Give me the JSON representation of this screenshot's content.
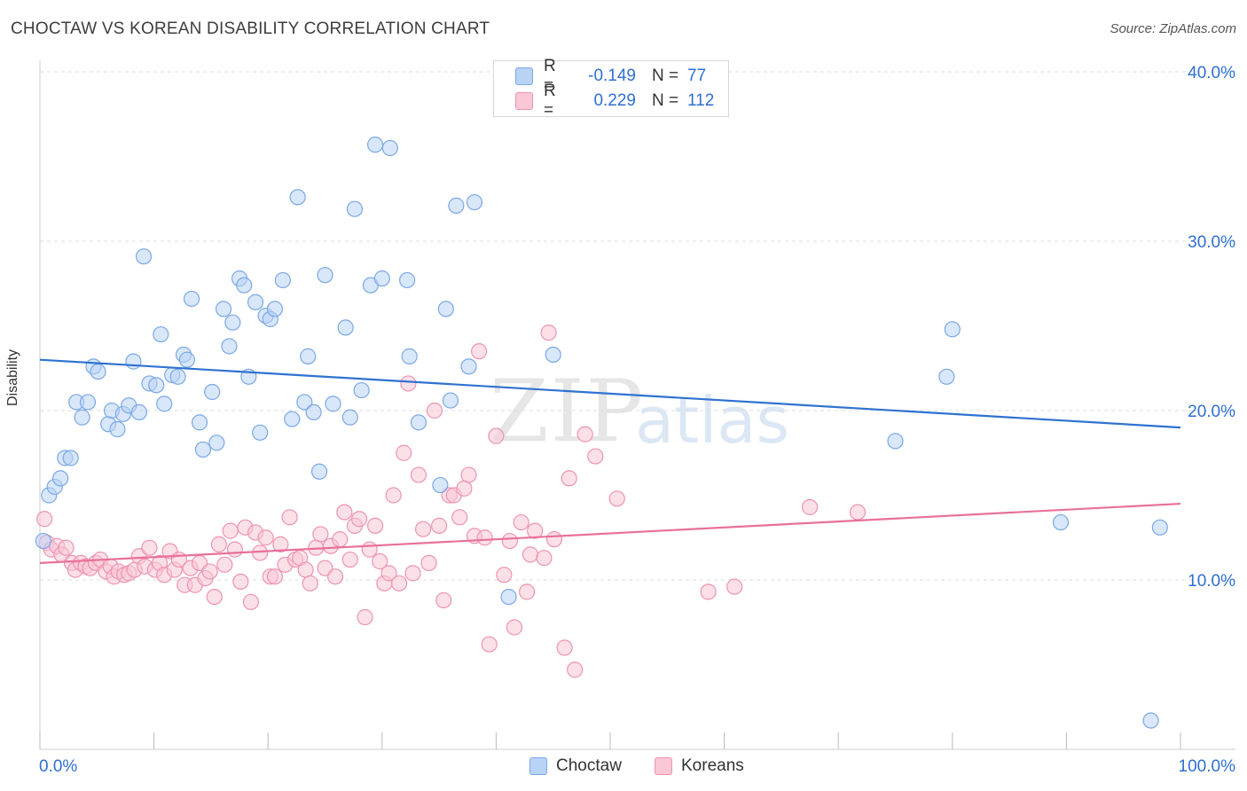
{
  "header": {
    "title": "CHOCTAW VS KOREAN DISABILITY CORRELATION CHART",
    "source": "Source: ZipAtlas.com"
  },
  "watermark": {
    "zip": "ZIP",
    "atlas": "atlas"
  },
  "legend_top": {
    "rows": [
      {
        "r_label": "R =",
        "r_value": "-0.149",
        "n_label": "N =",
        "n_value": "77"
      },
      {
        "r_label": "R =",
        "r_value": "0.229",
        "n_label": "N =",
        "n_value": "112"
      }
    ]
  },
  "legend_bottom": {
    "items": [
      {
        "label": "Choctaw"
      },
      {
        "label": "Koreans"
      }
    ]
  },
  "colors": {
    "choctaw_fill": "#b9d3f5",
    "choctaw_stroke": "#7aa8e6",
    "choctaw_line": "#2f72d0",
    "koreans_fill": "#f9c7d6",
    "koreans_stroke": "#ee93b2",
    "koreans_line": "#e8709a",
    "tick_label": "#2f6fd1",
    "grid": "#dddddd"
  },
  "chart_data": {
    "type": "scatter",
    "title": "CHOCTAW VS KOREAN DISABILITY CORRELATION CHART",
    "xlabel": "",
    "ylabel": "Disability",
    "xlim": [
      0,
      100
    ],
    "ylim": [
      0,
      40
    ],
    "x_tick_labels": [
      "0.0%",
      "100.0%"
    ],
    "y_ticks": [
      10,
      20,
      30,
      40
    ],
    "y_tick_labels": [
      "10.0%",
      "20.0%",
      "30.0%",
      "40.0%"
    ],
    "grid": true,
    "legend_placement": "top-center",
    "series": [
      {
        "name": "Choctaw",
        "r": -0.149,
        "n": 77,
        "trend": {
          "x": [
            0,
            100
          ],
          "y": [
            23.0,
            19.0
          ]
        },
        "points": [
          [
            0.8,
            15.0
          ],
          [
            1.3,
            15.5
          ],
          [
            1.8,
            16.0
          ],
          [
            2.2,
            17.2
          ],
          [
            2.7,
            17.2
          ],
          [
            3.2,
            20.5
          ],
          [
            3.7,
            19.6
          ],
          [
            4.2,
            20.5
          ],
          [
            4.7,
            22.6
          ],
          [
            5.1,
            22.3
          ],
          [
            6.0,
            19.2
          ],
          [
            6.3,
            20.0
          ],
          [
            6.8,
            18.9
          ],
          [
            7.3,
            19.8
          ],
          [
            7.8,
            20.3
          ],
          [
            8.2,
            22.9
          ],
          [
            8.7,
            19.9
          ],
          [
            9.1,
            29.1
          ],
          [
            9.6,
            21.6
          ],
          [
            10.2,
            21.5
          ],
          [
            10.6,
            24.5
          ],
          [
            10.9,
            20.4
          ],
          [
            11.6,
            22.1
          ],
          [
            12.1,
            22.0
          ],
          [
            12.6,
            23.3
          ],
          [
            12.9,
            23.0
          ],
          [
            13.3,
            26.6
          ],
          [
            14.0,
            19.3
          ],
          [
            14.3,
            17.7
          ],
          [
            15.1,
            21.1
          ],
          [
            15.5,
            18.1
          ],
          [
            16.1,
            26.0
          ],
          [
            16.6,
            23.8
          ],
          [
            16.9,
            25.2
          ],
          [
            17.5,
            27.8
          ],
          [
            17.9,
            27.4
          ],
          [
            18.3,
            22.0
          ],
          [
            18.9,
            26.4
          ],
          [
            19.3,
            18.7
          ],
          [
            19.8,
            25.6
          ],
          [
            20.2,
            25.4
          ],
          [
            20.6,
            26.0
          ],
          [
            21.3,
            27.7
          ],
          [
            22.1,
            19.5
          ],
          [
            22.6,
            32.6
          ],
          [
            23.2,
            20.5
          ],
          [
            23.5,
            23.2
          ],
          [
            24.0,
            19.9
          ],
          [
            24.5,
            16.4
          ],
          [
            25.0,
            28.0
          ],
          [
            25.7,
            20.4
          ],
          [
            26.8,
            24.9
          ],
          [
            27.2,
            19.6
          ],
          [
            27.6,
            31.9
          ],
          [
            28.2,
            21.2
          ],
          [
            29.0,
            27.4
          ],
          [
            29.4,
            35.7
          ],
          [
            30.0,
            27.8
          ],
          [
            30.7,
            35.5
          ],
          [
            32.2,
            27.7
          ],
          [
            32.4,
            23.2
          ],
          [
            33.2,
            19.3
          ],
          [
            35.1,
            15.6
          ],
          [
            35.6,
            26.0
          ],
          [
            36.0,
            20.6
          ],
          [
            36.5,
            32.1
          ],
          [
            37.6,
            22.6
          ],
          [
            38.1,
            32.3
          ],
          [
            41.1,
            9.0
          ],
          [
            45.0,
            23.3
          ],
          [
            75.0,
            18.2
          ],
          [
            79.5,
            22.0
          ],
          [
            80.0,
            24.8
          ],
          [
            89.5,
            13.4
          ],
          [
            98.2,
            13.1
          ],
          [
            97.4,
            1.7
          ],
          [
            0.3,
            12.3
          ]
        ]
      },
      {
        "name": "Koreans",
        "r": 0.229,
        "n": 112,
        "trend": {
          "x": [
            0,
            100
          ],
          "y": [
            11.0,
            14.5
          ]
        },
        "points": [
          [
            0.4,
            13.6
          ],
          [
            0.6,
            12.2
          ],
          [
            1.0,
            11.8
          ],
          [
            1.5,
            12.0
          ],
          [
            1.9,
            11.5
          ],
          [
            2.3,
            11.9
          ],
          [
            2.8,
            11.0
          ],
          [
            3.1,
            10.6
          ],
          [
            3.6,
            11.0
          ],
          [
            4.0,
            10.8
          ],
          [
            4.4,
            10.7
          ],
          [
            4.9,
            11.0
          ],
          [
            5.3,
            11.2
          ],
          [
            5.8,
            10.5
          ],
          [
            6.2,
            10.8
          ],
          [
            6.5,
            10.2
          ],
          [
            6.9,
            10.5
          ],
          [
            7.4,
            10.3
          ],
          [
            7.8,
            10.4
          ],
          [
            8.3,
            10.6
          ],
          [
            8.7,
            11.4
          ],
          [
            9.2,
            10.8
          ],
          [
            9.6,
            11.9
          ],
          [
            10.1,
            10.6
          ],
          [
            10.5,
            11.0
          ],
          [
            10.9,
            10.3
          ],
          [
            11.4,
            11.7
          ],
          [
            11.8,
            10.6
          ],
          [
            12.2,
            11.2
          ],
          [
            12.7,
            9.7
          ],
          [
            13.2,
            10.7
          ],
          [
            13.6,
            9.7
          ],
          [
            14.0,
            11.0
          ],
          [
            14.5,
            10.1
          ],
          [
            14.9,
            10.5
          ],
          [
            15.3,
            9.0
          ],
          [
            15.7,
            12.1
          ],
          [
            16.2,
            10.9
          ],
          [
            16.7,
            12.9
          ],
          [
            17.1,
            11.8
          ],
          [
            17.6,
            9.9
          ],
          [
            18.0,
            13.1
          ],
          [
            18.5,
            8.7
          ],
          [
            18.9,
            12.8
          ],
          [
            19.3,
            11.6
          ],
          [
            19.8,
            12.5
          ],
          [
            20.2,
            10.2
          ],
          [
            20.6,
            10.2
          ],
          [
            21.1,
            12.1
          ],
          [
            21.5,
            10.9
          ],
          [
            21.9,
            13.7
          ],
          [
            22.4,
            11.2
          ],
          [
            22.8,
            11.3
          ],
          [
            23.3,
            10.6
          ],
          [
            23.7,
            9.8
          ],
          [
            24.2,
            11.9
          ],
          [
            24.6,
            12.7
          ],
          [
            25.0,
            10.7
          ],
          [
            25.5,
            12.0
          ],
          [
            25.9,
            10.2
          ],
          [
            26.3,
            12.4
          ],
          [
            26.7,
            14.0
          ],
          [
            27.2,
            11.2
          ],
          [
            27.6,
            13.2
          ],
          [
            28.0,
            13.6
          ],
          [
            28.5,
            7.8
          ],
          [
            28.9,
            11.8
          ],
          [
            29.4,
            13.2
          ],
          [
            29.8,
            11.1
          ],
          [
            30.2,
            9.8
          ],
          [
            30.6,
            10.4
          ],
          [
            31.0,
            15.0
          ],
          [
            31.5,
            9.8
          ],
          [
            31.9,
            17.5
          ],
          [
            32.3,
            21.6
          ],
          [
            32.7,
            10.4
          ],
          [
            33.2,
            16.2
          ],
          [
            33.6,
            13.0
          ],
          [
            34.1,
            11.0
          ],
          [
            34.6,
            20.0
          ],
          [
            35.0,
            13.2
          ],
          [
            35.4,
            8.8
          ],
          [
            35.9,
            15.0
          ],
          [
            36.3,
            15.0
          ],
          [
            36.8,
            13.7
          ],
          [
            37.2,
            15.4
          ],
          [
            37.6,
            16.2
          ],
          [
            38.1,
            12.6
          ],
          [
            38.5,
            23.5
          ],
          [
            39.0,
            12.5
          ],
          [
            39.4,
            6.2
          ],
          [
            40.0,
            18.5
          ],
          [
            40.7,
            10.3
          ],
          [
            41.2,
            12.3
          ],
          [
            41.6,
            7.2
          ],
          [
            42.2,
            13.4
          ],
          [
            42.7,
            9.3
          ],
          [
            43.0,
            11.5
          ],
          [
            43.4,
            12.9
          ],
          [
            44.2,
            11.3
          ],
          [
            44.6,
            24.6
          ],
          [
            45.1,
            12.4
          ],
          [
            46.0,
            6.0
          ],
          [
            46.4,
            16.0
          ],
          [
            46.9,
            4.7
          ],
          [
            47.8,
            18.6
          ],
          [
            48.7,
            17.3
          ],
          [
            50.6,
            14.8
          ],
          [
            58.6,
            9.3
          ],
          [
            60.9,
            9.6
          ],
          [
            67.5,
            14.3
          ],
          [
            71.7,
            14.0
          ]
        ]
      }
    ]
  }
}
